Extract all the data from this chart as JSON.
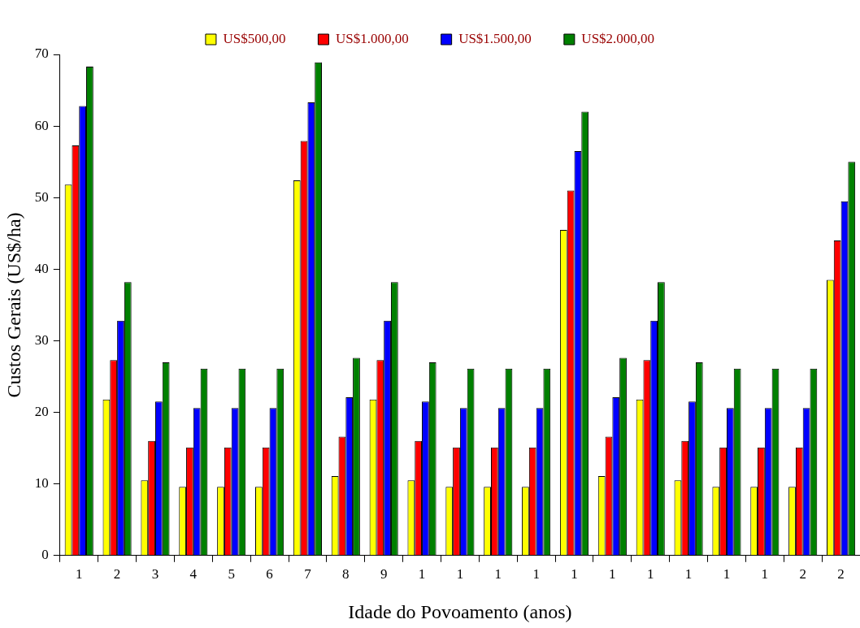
{
  "chart_data": {
    "type": "bar",
    "xlabel": "Idade do Povoamento (anos)",
    "ylabel": "Custos Gerais (US$/ha)",
    "categories": [
      "1",
      "2",
      "3",
      "4",
      "5",
      "6",
      "7",
      "8",
      "9",
      "1",
      "1",
      "1",
      "1",
      "1",
      "1",
      "1",
      "1",
      "1",
      "1",
      "2",
      "2"
    ],
    "series": [
      {
        "name": "US$500,00",
        "color": "#ffff00",
        "values": [
          51.8,
          21.8,
          10.5,
          9.6,
          9.6,
          9.6,
          52.4,
          11.1,
          21.8,
          10.5,
          9.6,
          9.6,
          9.6,
          45.5,
          11.1,
          21.8,
          10.5,
          9.6,
          9.6,
          9.6,
          38.5
        ]
      },
      {
        "name": "US$1.000,00",
        "color": "#ff0000",
        "values": [
          57.3,
          27.3,
          16,
          15.1,
          15.1,
          15.1,
          57.9,
          16.6,
          27.3,
          16,
          15.1,
          15.1,
          15.1,
          51,
          16.6,
          27.3,
          16,
          15.1,
          15.1,
          15.1,
          44
        ]
      },
      {
        "name": "US$1.500,00",
        "color": "#0000ff",
        "values": [
          62.8,
          32.8,
          21.5,
          20.6,
          20.6,
          20.6,
          63.3,
          22.1,
          32.8,
          21.5,
          20.6,
          20.6,
          20.6,
          56.5,
          22.1,
          32.8,
          21.5,
          20.6,
          20.6,
          20.6,
          49.5
        ]
      },
      {
        "name": "US$2.000,00",
        "color": "#008000",
        "values": [
          68.3,
          38.2,
          27,
          26.1,
          26.1,
          26.1,
          68.9,
          27.6,
          38.2,
          27,
          26.1,
          26.1,
          26.1,
          62,
          27.6,
          38.2,
          27,
          26.1,
          26.1,
          26.1,
          55
        ]
      }
    ],
    "ylim": [
      0,
      70
    ],
    "yticks": [
      0,
      10,
      20,
      30,
      40,
      50,
      60,
      70
    ],
    "grid": false,
    "legend": "top"
  }
}
